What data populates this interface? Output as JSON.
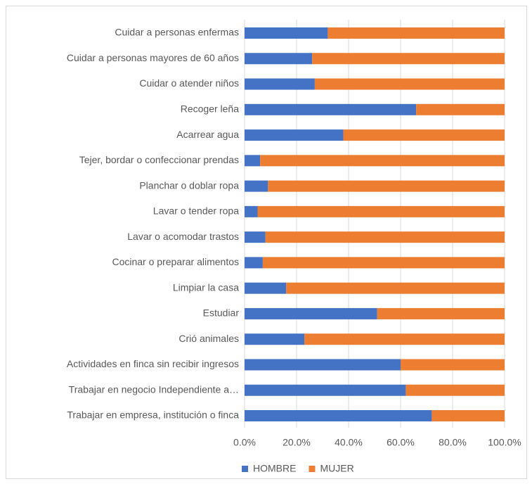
{
  "chart_data": {
    "type": "stacked_barh",
    "categories": [
      "Cuidar a personas enfermas",
      "Cuidar a personas mayores de 60 años",
      "Cuidar o atender niños",
      "Recoger leña",
      "Acarrear agua",
      "Tejer, bordar o confeccionar prendas",
      "Planchar o doblar ropa",
      "Lavar o tender ropa",
      "Lavar o acomodar trastos",
      "Cocinar o preparar alimentos",
      "Limpiar la casa",
      "Estudiar",
      "Crió animales",
      "Actividades en finca sin recibir ingresos",
      "Trabajar en negocio Independiente a…",
      "Trabajar en empresa, institución o finca"
    ],
    "series": [
      {
        "name": "HOMBRE",
        "color": "#4472c4",
        "values": [
          32,
          26,
          27,
          66,
          38,
          6,
          9,
          5,
          8,
          7,
          16,
          51,
          23,
          60,
          62,
          72
        ]
      },
      {
        "name": "MUJER",
        "color": "#ed7d31",
        "values": [
          68,
          74,
          73,
          34,
          62,
          94,
          91,
          95,
          92,
          93,
          84,
          49,
          77,
          40,
          38,
          28
        ]
      }
    ],
    "xlim": [
      0,
      100
    ],
    "xticks": [
      {
        "value": 0,
        "label": "0.0%"
      },
      {
        "value": 20,
        "label": "20.0%"
      },
      {
        "value": 40,
        "label": "40.0%"
      },
      {
        "value": 60,
        "label": "60.0%"
      },
      {
        "value": 80,
        "label": "80.0%"
      },
      {
        "value": 100,
        "label": "100.0%"
      }
    ],
    "grid": true,
    "legend": "bottom"
  }
}
